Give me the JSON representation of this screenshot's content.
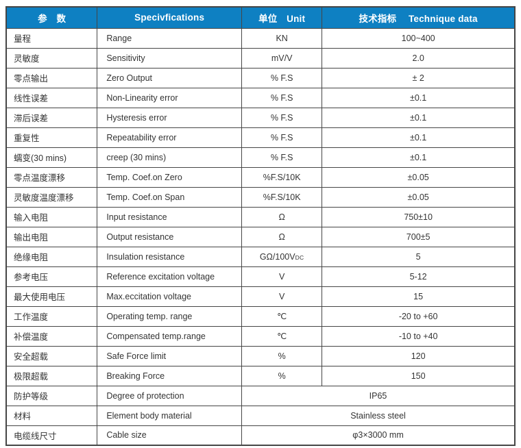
{
  "page": {
    "background_color": "#ffffff"
  },
  "table": {
    "accent_color": "#0e80c2",
    "header_text_color": "#ffffff",
    "body_text_color": "#333333",
    "border_color": "#454545",
    "headers": [
      {
        "label": "参　数"
      },
      {
        "label": "Specivfications"
      },
      {
        "label": "单位　Unit"
      },
      {
        "label": "技术指标　 Technique data"
      }
    ],
    "rows": [
      {
        "param_cn": "量程",
        "spec_en": "Range",
        "unit": "KN",
        "value": "100~400"
      },
      {
        "param_cn": "灵敏度",
        "spec_en": "Sensitivity",
        "unit": "mV/V",
        "value": "2.0"
      },
      {
        "param_cn": "零点输出",
        "spec_en": "Zero Output",
        "unit": "% F.S",
        "value": "± 2"
      },
      {
        "param_cn": "线性误差",
        "spec_en": "Non-Linearity error",
        "unit": "% F.S",
        "value": "±0.1"
      },
      {
        "param_cn": "滞后误差",
        "spec_en": "Hysteresis error",
        "unit": "% F.S",
        "value": "±0.1"
      },
      {
        "param_cn": "重复性",
        "spec_en": "Repeatability error",
        "unit": "% F.S",
        "value": "±0.1"
      },
      {
        "param_cn": "蠕变(30 mins)",
        "spec_en": "creep (30 mins)",
        "unit": "% F.S",
        "value": "±0.1"
      },
      {
        "param_cn": "零点温度漂移",
        "spec_en": "Temp. Coef.on Zero",
        "unit": "%F.S/10K",
        "value": "±0.05"
      },
      {
        "param_cn": "灵敏度温度漂移",
        "spec_en": "Temp. Coef.on Span",
        "unit": "%F.S/10K",
        "value": "±0.05"
      },
      {
        "param_cn": "输入电阻",
        "spec_en": "Input resistance",
        "unit": "Ω",
        "value": "750±10"
      },
      {
        "param_cn": "输出电阻",
        "spec_en": "Output resistance",
        "unit": "Ω",
        "value": "700±5"
      },
      {
        "param_cn": "绝缘电阻",
        "spec_en": "Insulation resistance",
        "unit": "GΩ/100V",
        "unit_sub": "DC",
        "value": "5"
      },
      {
        "param_cn": "参考电压",
        "spec_en": "Reference excitation voltage",
        "unit": "V",
        "value": "5-12"
      },
      {
        "param_cn": "最大使用电压",
        "spec_en": "Max.eccitation voltage",
        "unit": "V",
        "value": "15"
      },
      {
        "param_cn": "工作温度",
        "spec_en": "Operating temp. range",
        "unit": "℃",
        "value": "-20 to +60"
      },
      {
        "param_cn": "补偿温度",
        "spec_en": "Compensated temp.range",
        "unit": "℃",
        "value": "-10 to +40"
      },
      {
        "param_cn": "安全超载",
        "spec_en": "Safe Force limit",
        "unit": "%",
        "value": "120"
      },
      {
        "param_cn": "极限超载",
        "spec_en": "Breaking Force",
        "unit": "%",
        "value": "150"
      },
      {
        "param_cn": "防护等级",
        "spec_en": "Degree of protection",
        "merged": true,
        "value": "IP65"
      },
      {
        "param_cn": "材料",
        "spec_en": "Element body material",
        "merged": true,
        "value": "Stainless steel"
      },
      {
        "param_cn": "电缆线尺寸",
        "spec_en": "Cable size",
        "merged": true,
        "value": "φ3×3000 mm"
      }
    ]
  }
}
